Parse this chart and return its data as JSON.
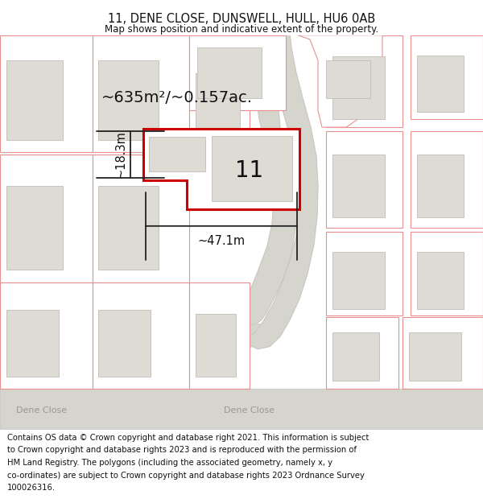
{
  "title": "11, DENE CLOSE, DUNSWELL, HULL, HU6 0AB",
  "subtitle": "Map shows position and indicative extent of the property.",
  "footer_lines": [
    "Contains OS data © Crown copyright and database right 2021. This information is subject",
    "to Crown copyright and database rights 2023 and is reproduced with the permission of",
    "HM Land Registry. The polygons (including the associated geometry, namely x, y",
    "co-ordinates) are subject to Crown copyright and database rights 2023 Ordnance Survey",
    "100026316."
  ],
  "area_label": "~635m²/~0.157ac.",
  "width_label": "~47.1m",
  "height_label": "~18.3m",
  "number_label": "11",
  "map_bg": "#f8f7f5",
  "road_fill": "#d5d4cd",
  "road_edge": "#c0bfb8",
  "parcel_edge": "#e89090",
  "parcel_fill": "#ffffff",
  "building_fill": "#dddbd3",
  "building_edge": "#c0bdb5",
  "plot_edge": "#cc0000",
  "plot_fill": "#ffffff",
  "dim_color": "#222222",
  "street_color": "#999990",
  "title_fontsize": 10.5,
  "subtitle_fontsize": 8.5,
  "footer_fontsize": 7.2,
  "area_fontsize": 14,
  "number_fontsize": 20,
  "dim_fontsize": 10.5,
  "street_fontsize": 8
}
